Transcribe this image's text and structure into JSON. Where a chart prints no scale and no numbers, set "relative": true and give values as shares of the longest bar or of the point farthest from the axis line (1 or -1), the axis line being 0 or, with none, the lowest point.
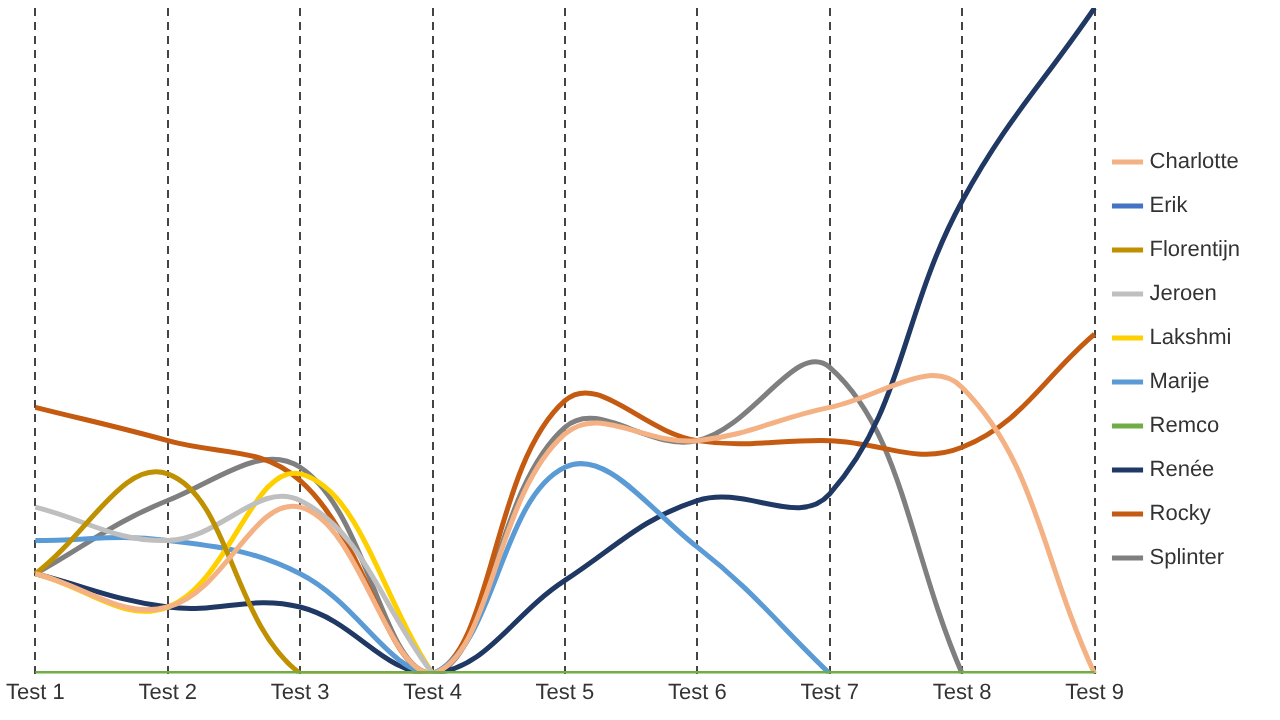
{
  "chart_data": {
    "type": "line",
    "relative": true,
    "categories": [
      "Test 1",
      "Test 2",
      "Test 3",
      "Test 4",
      "Test 5",
      "Test 6",
      "Test 7",
      "Test 8",
      "Test 9"
    ],
    "grid": "x",
    "legend": "right",
    "marker": "none",
    "series": [
      {
        "name": "Charlotte",
        "color": "#f4b183",
        "values": [
          0.15,
          0.1,
          0.25,
          0,
          0.36,
          0.35,
          0.4,
          0.43,
          0
        ]
      },
      {
        "name": "Erik",
        "color": "#4472c4",
        "values": [
          null,
          null,
          null,
          null,
          null,
          null,
          null,
          null,
          null
        ]
      },
      {
        "name": "Florentijn",
        "color": "#bf9000",
        "values": [
          0.15,
          0.3,
          0,
          0,
          null,
          null,
          null,
          null,
          null
        ]
      },
      {
        "name": "Jeroen",
        "color": "#bfbfbf",
        "values": [
          0.25,
          0.2,
          0.26,
          0,
          null,
          null,
          null,
          null,
          null
        ]
      },
      {
        "name": "Lakshmi",
        "color": "#ffd000",
        "values": [
          0.15,
          0.1,
          0.3,
          0,
          null,
          null,
          null,
          null,
          null
        ]
      },
      {
        "name": "Marije",
        "color": "#5b9bd5",
        "values": [
          0.2,
          0.2,
          0.15,
          0,
          0.31,
          0.19,
          0,
          null,
          null
        ]
      },
      {
        "name": "Remco",
        "color": "#70ad47",
        "values": [
          0,
          0,
          0,
          0,
          0,
          0,
          0,
          0,
          0
        ]
      },
      {
        "name": "Renée",
        "color": "#1f3864",
        "values": [
          0.15,
          0.1,
          0.1,
          0,
          0.14,
          0.26,
          0.27,
          0.71,
          1
        ]
      },
      {
        "name": "Rocky",
        "color": "#c55a11",
        "values": [
          0.4,
          0.35,
          0.29,
          0,
          0.41,
          0.35,
          0.35,
          0.34,
          0.51
        ]
      },
      {
        "name": "Splinter",
        "color": "#7f7f7f",
        "values": [
          0.15,
          0.26,
          0.31,
          0,
          0.37,
          0.35,
          0.46,
          0,
          null
        ]
      }
    ]
  }
}
